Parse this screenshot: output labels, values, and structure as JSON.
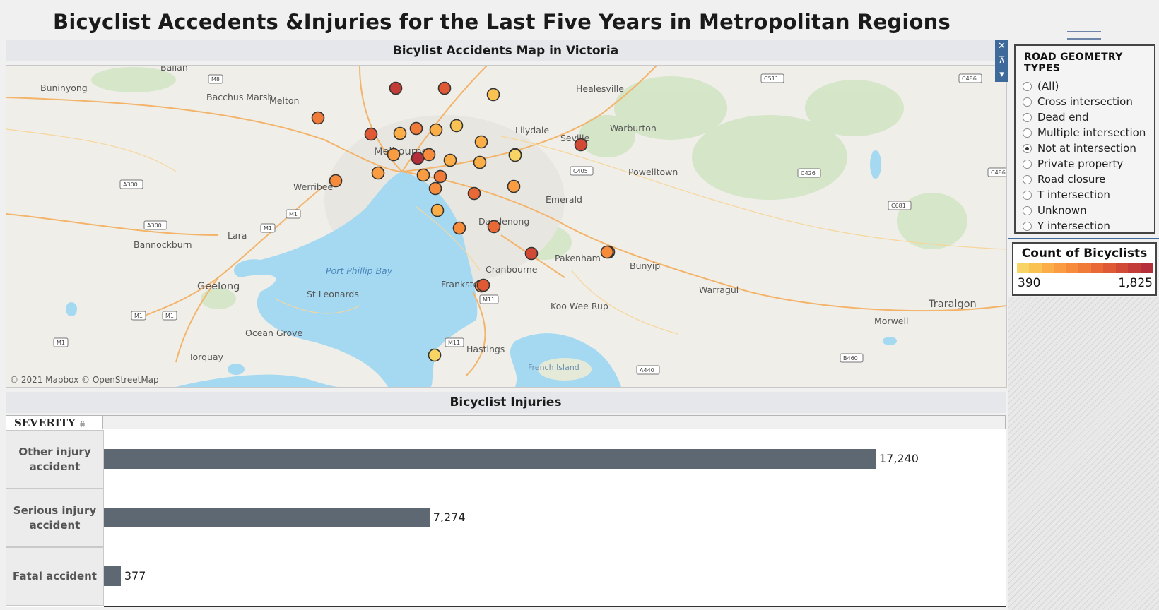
{
  "title": "Bicyclist Accedents &Injuries for the Last Five Years in Metropolitan Regions",
  "map": {
    "heading": "Bicylist Accidents Map in Victoria",
    "copyright": "© 2021 Mapbox © OpenStreetMap",
    "place_labels": [
      "Ballan",
      "Buninyong",
      "Bacchus Marsh",
      "Melton",
      "Healesville",
      "Lilydale",
      "Warburton",
      "Seville",
      "Melbourne",
      "Powelltown",
      "Werribee",
      "Emerald",
      "Lara",
      "Bannockburn",
      "Dandenong",
      "Pakenham",
      "Bunyip",
      "Cranbourne",
      "Port Phillip Bay",
      "Geelong",
      "St Leonards",
      "Frankston",
      "Warragul",
      "Traralgon",
      "Koo Wee Rup",
      "Morwell",
      "Ocean Grove",
      "Torquay",
      "Hastings",
      "French Island"
    ],
    "road_labels": [
      "M8",
      "C511",
      "C486",
      "A300",
      "M1",
      "M1",
      "A300",
      "C405",
      "C426",
      "C486",
      "C681",
      "M1",
      "M1",
      "M1",
      "M11",
      "M11",
      "B460",
      "A440"
    ],
    "points": [
      {
        "value": 1650
      },
      {
        "value": 1450
      },
      {
        "value": 540
      },
      {
        "value": 1120
      },
      {
        "value": 1420
      },
      {
        "value": 730
      },
      {
        "value": 1060
      },
      {
        "value": 720
      },
      {
        "value": 540
      },
      {
        "value": 620
      },
      {
        "value": 1825
      },
      {
        "value": 870
      },
      {
        "value": 940
      },
      {
        "value": 540
      },
      {
        "value": 740
      },
      {
        "value": 1580
      },
      {
        "value": 980
      },
      {
        "value": 870
      },
      {
        "value": 830
      },
      {
        "value": 1090
      },
      {
        "value": 620
      },
      {
        "value": 870
      },
      {
        "value": 1320
      },
      {
        "value": 1260
      },
      {
        "value": 1520
      },
      {
        "value": 970
      },
      {
        "value": 710
      },
      {
        "value": 900
      },
      {
        "value": 390
      },
      {
        "value": 920
      },
      {
        "value": 1000
      },
      {
        "value": 1450
      },
      {
        "value": 460
      },
      {
        "value": 960
      }
    ]
  },
  "injuries": {
    "heading": "Bicyclist Injuries",
    "dimension_header": "SEVERITY",
    "rows": [
      {
        "label": "Other injury accident",
        "value": 17240,
        "display": "17,240"
      },
      {
        "label": "Serious injury accident",
        "value": 7274,
        "display": "7,274"
      },
      {
        "label": "Fatal accident",
        "value": 377,
        "display": "377"
      }
    ]
  },
  "filter": {
    "title": "ROAD GEOMETRY TYPES",
    "options": [
      "(All)",
      "Cross intersection",
      "Dead end",
      "Multiple intersection",
      "Not at intersection",
      "Private property",
      "Road closure",
      "T intersection",
      "Unknown",
      "Y intersection"
    ],
    "selected": "Not at intersection"
  },
  "legend": {
    "title": "Count of Bicyclists",
    "min_label": "390",
    "max_label": "1,825",
    "min": 390,
    "max": 1825,
    "ramp_colors": [
      "#f7d464",
      "#f9c253",
      "#fbae47",
      "#fa9c41",
      "#f68b3c",
      "#f07a38",
      "#e86935",
      "#de5934",
      "#d24a35",
      "#c43c37",
      "#b52f3a"
    ]
  },
  "colors": {
    "bar": "#5e6873",
    "water": "#a4d9f1",
    "land": "#efeee9",
    "panel_accent": "#3d6a9a"
  }
}
